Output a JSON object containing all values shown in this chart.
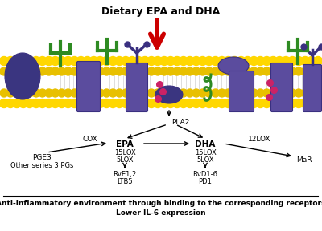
{
  "title": "Dietary EPA and DHA",
  "bottom_line1": "Anti-inflammatory environment through binding to the corresponding receptors",
  "bottom_line2": "Lower IL-6 expression",
  "arrow_red": "#CC0000",
  "protein_color": "#5B4C9E",
  "protein_dark": "#3A3080",
  "green_color": "#2E8B22",
  "pink_color": "#CC2266",
  "gold_color": "#FFD700",
  "gold_dark": "#E8C000",
  "white_color": "#FFFFFF",
  "tail_color": "#E8E8E8",
  "text_color": "#111111"
}
